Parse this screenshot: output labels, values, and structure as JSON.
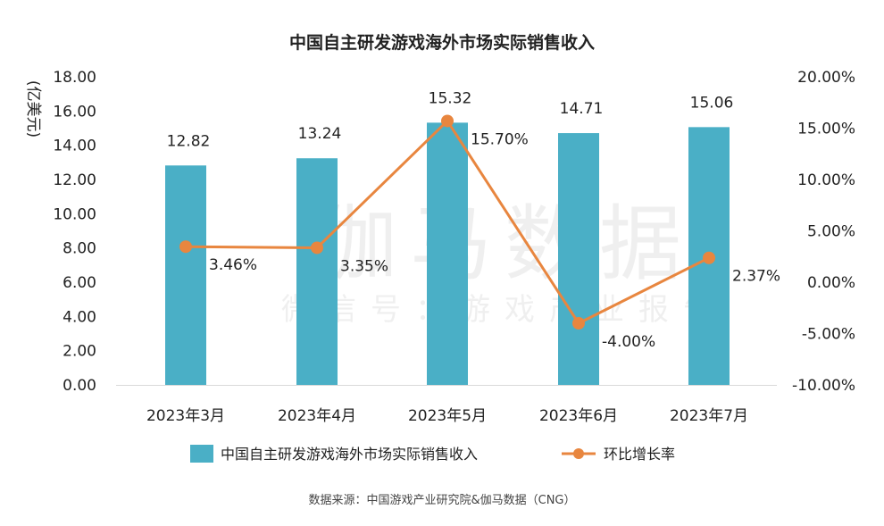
{
  "chart_data": {
    "type": "bar",
    "title": "中国自主研发游戏海外市场实际销售收入",
    "ylabel": "亿美元",
    "y2label": "",
    "categories": [
      "2023年3月",
      "2023年4月",
      "2023年5月",
      "2023年6月",
      "2023年7月"
    ],
    "ylim": [
      0,
      18
    ],
    "y2lim": [
      -10,
      20
    ],
    "yticks": [
      "0.00",
      "2.00",
      "4.00",
      "6.00",
      "8.00",
      "10.00",
      "12.00",
      "14.00",
      "16.00",
      "18.00"
    ],
    "y2ticks": [
      "-10.00%",
      "-5.00%",
      "0.00%",
      "5.00%",
      "10.00%",
      "15.00%",
      "20.00%"
    ],
    "series": [
      {
        "name": "中国自主研发游戏海外市场实际销售收入",
        "type": "bar",
        "axis": "left",
        "color": "#4AAFC6",
        "values": [
          12.82,
          13.24,
          15.32,
          14.71,
          15.06
        ],
        "labels": [
          "12.82",
          "13.24",
          "15.32",
          "14.71",
          "15.06"
        ]
      },
      {
        "name": "环比增长率",
        "type": "line",
        "axis": "right",
        "color": "#E8863F",
        "values": [
          3.46,
          3.35,
          15.7,
          -4.0,
          2.37
        ],
        "labels": [
          "3.46%",
          "3.35%",
          "15.70%",
          "-4.00%",
          "2.37%"
        ]
      }
    ],
    "legend": "bottom",
    "grid": false
  },
  "watermark": {
    "main": "伽马数据",
    "sub": "微信号：游戏产业报告"
  },
  "source": "数据来源：中国游戏产业研究院&伽马数据（CNG）"
}
